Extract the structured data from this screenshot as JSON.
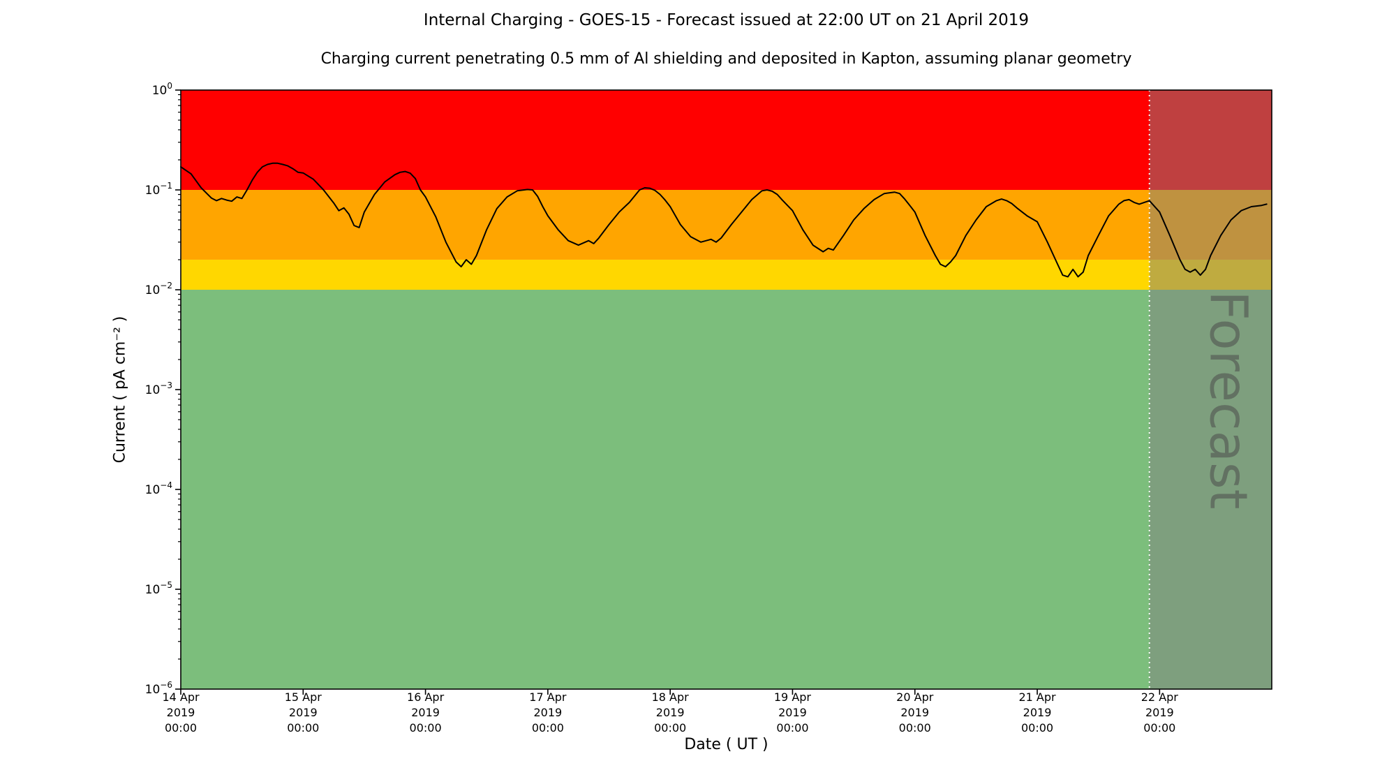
{
  "title": "Internal Charging - GOES-15 - Forecast issued at 22:00 UT on 21 April 2019",
  "subtitle": "Charging current penetrating 0.5 mm of Al shielding and deposited in Kapton, assuming planar geometry",
  "chart_data": {
    "type": "line",
    "title": "Internal Charging - GOES-15 - Forecast issued at 22:00 UT on 21 April 2019",
    "subtitle": "Charging current penetrating 0.5 mm of Al shielding and deposited in Kapton, assuming planar geometry",
    "xlabel": "Date ( UT )",
    "ylabel": "Current ( pA cm⁻² )",
    "y_scale": "log",
    "ylim_log": [
      -6,
      0
    ],
    "x_domain_hours": [
      0,
      214
    ],
    "x_epoch": "14 Apr 2019 00:00",
    "grid": false,
    "x_ticks": [
      {
        "hour": 0,
        "lines": [
          "14 Apr",
          "2019",
          "00:00"
        ]
      },
      {
        "hour": 24,
        "lines": [
          "15 Apr",
          "2019",
          "00:00"
        ]
      },
      {
        "hour": 48,
        "lines": [
          "16 Apr",
          "2019",
          "00:00"
        ]
      },
      {
        "hour": 72,
        "lines": [
          "17 Apr",
          "2019",
          "00:00"
        ]
      },
      {
        "hour": 96,
        "lines": [
          "18 Apr",
          "2019",
          "00:00"
        ]
      },
      {
        "hour": 120,
        "lines": [
          "19 Apr",
          "2019",
          "00:00"
        ]
      },
      {
        "hour": 144,
        "lines": [
          "20 Apr",
          "2019",
          "00:00"
        ]
      },
      {
        "hour": 168,
        "lines": [
          "21 Apr",
          "2019",
          "00:00"
        ]
      },
      {
        "hour": 192,
        "lines": [
          "22 Apr",
          "2019",
          "00:00"
        ]
      }
    ],
    "y_ticks": [
      {
        "exp": "0",
        "value": 1
      },
      {
        "exp": "−1",
        "value": 0.1
      },
      {
        "exp": "−2",
        "value": 0.01
      },
      {
        "exp": "−3",
        "value": 0.001
      },
      {
        "exp": "−4",
        "value": 0.0001
      },
      {
        "exp": "−5",
        "value": 1e-05
      },
      {
        "exp": "−6",
        "value": 1e-06
      }
    ],
    "bands": [
      {
        "name": "green-quiet",
        "from": 1e-06,
        "to": 0.01,
        "color": "#7CBE7C"
      },
      {
        "name": "yellow-elevated",
        "from": 0.01,
        "to": 0.02,
        "color": "#FFD700"
      },
      {
        "name": "orange-warning",
        "from": 0.02,
        "to": 0.1,
        "color": "#FFA500"
      },
      {
        "name": "red-alert",
        "from": 0.1,
        "to": 1.0,
        "color": "#FF0000"
      }
    ],
    "forecast": {
      "start_hour": 190,
      "start_label": "21 Apr 2019 22:00",
      "label": "Forecast",
      "overlay_color": "#808080",
      "overlay_opacity": 0.5,
      "divider_color": "#ffffff",
      "divider_style": "dotted",
      "watermark_color": "#4a4a4a",
      "watermark_opacity": 0.55
    },
    "series": [
      {
        "name": "charging-current",
        "color": "#000000",
        "points": [
          [
            0,
            0.17
          ],
          [
            2,
            0.145
          ],
          [
            4,
            0.105
          ],
          [
            6,
            0.083
          ],
          [
            7,
            0.078
          ],
          [
            8,
            0.082
          ],
          [
            9,
            0.079
          ],
          [
            10,
            0.077
          ],
          [
            11,
            0.085
          ],
          [
            12,
            0.082
          ],
          [
            13,
            0.1
          ],
          [
            14,
            0.125
          ],
          [
            15,
            0.15
          ],
          [
            16,
            0.17
          ],
          [
            17,
            0.18
          ],
          [
            18,
            0.185
          ],
          [
            19,
            0.185
          ],
          [
            20,
            0.18
          ],
          [
            21,
            0.174
          ],
          [
            22,
            0.163
          ],
          [
            23,
            0.15
          ],
          [
            24,
            0.148
          ],
          [
            26,
            0.128
          ],
          [
            28,
            0.1
          ],
          [
            30,
            0.074
          ],
          [
            31,
            0.062
          ],
          [
            32,
            0.066
          ],
          [
            33,
            0.057
          ],
          [
            34,
            0.044
          ],
          [
            35,
            0.042
          ],
          [
            36,
            0.06
          ],
          [
            38,
            0.09
          ],
          [
            40,
            0.12
          ],
          [
            42,
            0.142
          ],
          [
            43,
            0.15
          ],
          [
            44,
            0.153
          ],
          [
            45,
            0.147
          ],
          [
            46,
            0.13
          ],
          [
            47,
            0.1
          ],
          [
            48,
            0.085
          ],
          [
            50,
            0.054
          ],
          [
            52,
            0.03
          ],
          [
            54,
            0.019
          ],
          [
            55,
            0.017
          ],
          [
            56,
            0.02
          ],
          [
            57,
            0.018
          ],
          [
            58,
            0.022
          ],
          [
            60,
            0.04
          ],
          [
            62,
            0.065
          ],
          [
            64,
            0.085
          ],
          [
            66,
            0.098
          ],
          [
            68,
            0.101
          ],
          [
            69,
            0.1
          ],
          [
            70,
            0.086
          ],
          [
            71,
            0.068
          ],
          [
            72,
            0.055
          ],
          [
            74,
            0.04
          ],
          [
            76,
            0.031
          ],
          [
            78,
            0.028
          ],
          [
            80,
            0.031
          ],
          [
            81,
            0.029
          ],
          [
            82,
            0.033
          ],
          [
            84,
            0.045
          ],
          [
            86,
            0.06
          ],
          [
            88,
            0.075
          ],
          [
            90,
            0.1
          ],
          [
            91,
            0.105
          ],
          [
            92,
            0.104
          ],
          [
            93,
            0.099
          ],
          [
            94,
            0.09
          ],
          [
            95,
            0.079
          ],
          [
            96,
            0.068
          ],
          [
            98,
            0.045
          ],
          [
            100,
            0.034
          ],
          [
            102,
            0.03
          ],
          [
            104,
            0.032
          ],
          [
            105,
            0.03
          ],
          [
            106,
            0.033
          ],
          [
            108,
            0.045
          ],
          [
            110,
            0.06
          ],
          [
            112,
            0.08
          ],
          [
            114,
            0.098
          ],
          [
            115,
            0.1
          ],
          [
            116,
            0.097
          ],
          [
            117,
            0.09
          ],
          [
            118,
            0.079
          ],
          [
            120,
            0.062
          ],
          [
            122,
            0.04
          ],
          [
            124,
            0.028
          ],
          [
            126,
            0.024
          ],
          [
            127,
            0.026
          ],
          [
            128,
            0.025
          ],
          [
            130,
            0.035
          ],
          [
            132,
            0.05
          ],
          [
            134,
            0.065
          ],
          [
            136,
            0.08
          ],
          [
            138,
            0.092
          ],
          [
            140,
            0.095
          ],
          [
            141,
            0.092
          ],
          [
            142,
            0.081
          ],
          [
            143,
            0.07
          ],
          [
            144,
            0.06
          ],
          [
            146,
            0.035
          ],
          [
            148,
            0.022
          ],
          [
            149,
            0.018
          ],
          [
            150,
            0.017
          ],
          [
            151,
            0.019
          ],
          [
            152,
            0.022
          ],
          [
            154,
            0.035
          ],
          [
            156,
            0.05
          ],
          [
            158,
            0.068
          ],
          [
            160,
            0.078
          ],
          [
            161,
            0.081
          ],
          [
            162,
            0.078
          ],
          [
            163,
            0.073
          ],
          [
            164,
            0.066
          ],
          [
            166,
            0.055
          ],
          [
            168,
            0.048
          ],
          [
            170,
            0.03
          ],
          [
            172,
            0.018
          ],
          [
            173,
            0.014
          ],
          [
            174,
            0.0135
          ],
          [
            175,
            0.016
          ],
          [
            176,
            0.0135
          ],
          [
            177,
            0.015
          ],
          [
            178,
            0.022
          ],
          [
            180,
            0.035
          ],
          [
            182,
            0.055
          ],
          [
            184,
            0.072
          ],
          [
            185,
            0.078
          ],
          [
            186,
            0.08
          ],
          [
            187,
            0.075
          ],
          [
            188,
            0.072
          ],
          [
            189,
            0.075
          ],
          [
            190,
            0.078
          ],
          [
            192,
            0.06
          ],
          [
            194,
            0.035
          ],
          [
            196,
            0.02
          ],
          [
            197,
            0.016
          ],
          [
            198,
            0.015
          ],
          [
            199,
            0.016
          ],
          [
            200,
            0.014
          ],
          [
            201,
            0.016
          ],
          [
            202,
            0.022
          ],
          [
            204,
            0.035
          ],
          [
            206,
            0.05
          ],
          [
            208,
            0.062
          ],
          [
            210,
            0.068
          ],
          [
            212,
            0.07
          ],
          [
            213,
            0.072
          ]
        ]
      }
    ]
  }
}
